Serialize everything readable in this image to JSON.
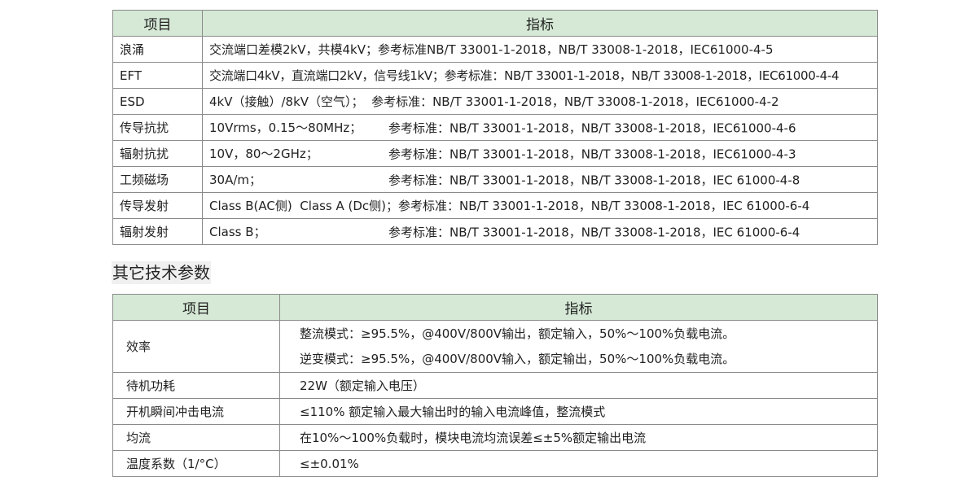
{
  "emc_table": {
    "headers": [
      "项目",
      "指标"
    ],
    "rows": [
      {
        "item": "浪涌",
        "value": "交流端口差模2kV，共模4kV；参考标准NB/T 33001-1-2018，NB/T 33008-1-2018，IEC61000-4-5"
      },
      {
        "item": "EFT",
        "value": "交流端口4kV，直流端口2kV，信号线1kV；参考标准：NB/T 33001-1-2018，NB/T 33008-1-2018，IEC61000-4-4"
      },
      {
        "item": "ESD",
        "value": "4kV（接触）/8kV（空气）；  参考标准：NB/T 33001-1-2018，NB/T 33008-1-2018，IEC61000-4-2"
      },
      {
        "item": "传导抗扰",
        "value": "10Vrms，0.15～80MHz；",
        "ref": "参考标准：NB/T 33001-1-2018，NB/T 33008-1-2018，IEC61000-4-6"
      },
      {
        "item": "辐射抗扰",
        "value": "10V，80～2GHz；",
        "ref": "参考标准：NB/T 33001-1-2018，NB/T 33008-1-2018，IEC61000-4-3"
      },
      {
        "item": "工频磁场",
        "value": "30A/m；",
        "ref": "参考标准：NB/T 33001-1-2018，NB/T 33008-1-2018，IEC 61000-4-8"
      },
      {
        "item": "传导发射",
        "value": "Class B(AC侧)  Class A (Dc侧)；参考标准：NB/T 33001-1-2018，NB/T 33008-1-2018，IEC 61000-6-4"
      },
      {
        "item": "辐射发射",
        "value": "Class B；",
        "ref": "参考标准：NB/T 33001-1-2018，NB/T 33008-1-2018，IEC 61000-6-4"
      }
    ]
  },
  "section_title": "其它技术参数",
  "other_table": {
    "headers": [
      "项目",
      "指标"
    ],
    "rows": [
      {
        "item": "效率",
        "lines": [
          "整流模式：≥95.5%，@400V/800V输出，额定输入，50%～100%负载电流。",
          "逆变模式：≥95.5%，@400V/800V输入，额定输出，50%～100%负载电流。"
        ]
      },
      {
        "item": "待机功耗",
        "value": "22W（额定输入电压）"
      },
      {
        "item": "开机瞬间冲击电流",
        "value": "≤110% 额定输入最大输出时的输入电流峰值，整流模式"
      },
      {
        "item": "均流",
        "value": "在10%～100%负载时，模块电流均流误差≤±5%额定输出电流"
      },
      {
        "item": "温度系数（1/°C）",
        "value": "≤±0.01%"
      }
    ]
  }
}
